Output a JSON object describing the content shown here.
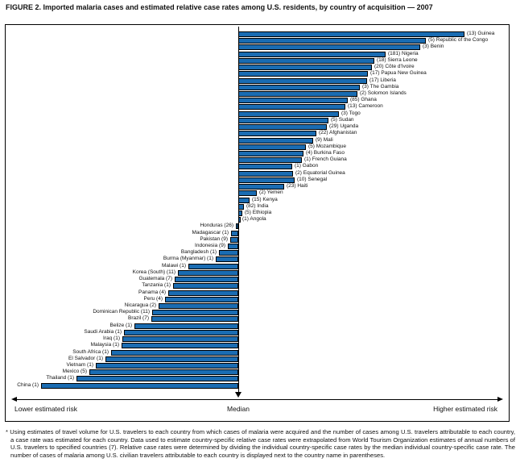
{
  "title": "FIGURE 2.  Imported malaria cases and estimated relative case rates among U.S. residents, by country of acquisition — 2007",
  "footnote": "* Using estimates of travel volume for U.S. travelers to each country from which cases of malaria were acquired and the number of cases among U.S. travelers attributable to each country, a case rate was estimated for each country.  Data used to estimate country-specific relative case rates were extrapolated from World Tourism Organization estimates of annual numbers of U.S. travelers to specified countries (7). Relative case rates were determined by dividing the individual country-specific case rates by the median individual country-specific case rate. The number of cases of malaria among U.S. civilian travelers attributable to each country is displayed next to the country name in parentheses.",
  "colors": {
    "bar_fill": "#1a6cb2",
    "bar_border": "#000000",
    "text": "#111111"
  },
  "chart_data": {
    "type": "bar",
    "orientation": "horizontal-diverging",
    "title": "Imported malaria cases and estimated relative case rates among U.S. residents, by country of acquisition — 2007",
    "value_note": "len = estimated relative case rate as pixel distance from the median line (no numeric axis shown in figure); side = higher/lower estimated risk vs median",
    "axis": {
      "left": "Lower estimated risk",
      "center": "Median",
      "right": "Higher estimated risk"
    },
    "rows": [
      {
        "country": "Guinea",
        "cases": 13,
        "label": "(13) Guinea",
        "side": "higher",
        "len": 281
      },
      {
        "country": "Republic of the Congo",
        "cases": 5,
        "label": "(5) Republic of the Congo",
        "side": "higher",
        "len": 233
      },
      {
        "country": "Benin",
        "cases": 3,
        "label": "(3) Benin",
        "side": "higher",
        "len": 226
      },
      {
        "country": "Nigeria",
        "cases": 181,
        "label": "(181) Nigeria",
        "side": "higher",
        "len": 183
      },
      {
        "country": "Sierra Leone",
        "cases": 18,
        "label": "(18) Sierra Leone",
        "side": "higher",
        "len": 169
      },
      {
        "country": "Côte d'Ivoire",
        "cases": 20,
        "label": "(20) Côte d'Ivoire",
        "side": "higher",
        "len": 166
      },
      {
        "country": "Papua New Guinea",
        "cases": 17,
        "label": "(17) Papua New Guinea",
        "side": "higher",
        "len": 161
      },
      {
        "country": "Liberia",
        "cases": 17,
        "label": "(17) Liberia",
        "side": "higher",
        "len": 160
      },
      {
        "country": "The Gambia",
        "cases": 3,
        "label": "(3) The Gambia",
        "side": "higher",
        "len": 151
      },
      {
        "country": "Solomon Islands",
        "cases": 2,
        "label": "(2) Solomon Islands",
        "side": "higher",
        "len": 148
      },
      {
        "country": "Ghana",
        "cases": 85,
        "label": "(85) Ghana",
        "side": "higher",
        "len": 136
      },
      {
        "country": "Cameroon",
        "cases": 13,
        "label": "(13) Cameroon",
        "side": "higher",
        "len": 133
      },
      {
        "country": "Togo",
        "cases": 3,
        "label": "(3) Togo",
        "side": "higher",
        "len": 125
      },
      {
        "country": "Sudan",
        "cases": 5,
        "label": "(5) Sudan",
        "side": "higher",
        "len": 112
      },
      {
        "country": "Uganda",
        "cases": 29,
        "label": "(29) Uganda",
        "side": "higher",
        "len": 110
      },
      {
        "country": "Afghanistan",
        "cases": 22,
        "label": "(22) Afghanistan",
        "side": "higher",
        "len": 97
      },
      {
        "country": "Mali",
        "cases": 9,
        "label": "(9) Mali",
        "side": "higher",
        "len": 93
      },
      {
        "country": "Mozambique",
        "cases": 5,
        "label": "(5) Mozambique",
        "side": "higher",
        "len": 84
      },
      {
        "country": "Burkina Faso",
        "cases": 4,
        "label": "(4) Burkina Faso",
        "side": "higher",
        "len": 81
      },
      {
        "country": "French Guiana",
        "cases": 1,
        "label": "(1) French Guiana",
        "side": "higher",
        "len": 79
      },
      {
        "country": "Gabon",
        "cases": 1,
        "label": "(1) Gabon",
        "side": "higher",
        "len": 67
      },
      {
        "country": "Equatorial Guinea",
        "cases": 2,
        "label": "(2) Equatorial Guinea",
        "side": "higher",
        "len": 68
      },
      {
        "country": "Senegal",
        "cases": 10,
        "label": "(10) Senegal",
        "side": "higher",
        "len": 70
      },
      {
        "country": "Haiti",
        "cases": 23,
        "label": "(23) Haiti",
        "side": "higher",
        "len": 57
      },
      {
        "country": "Yemen",
        "cases": 2,
        "label": "(2) Yemen",
        "side": "higher",
        "len": 23
      },
      {
        "country": "Kenya",
        "cases": 15,
        "label": "(15) Kenya",
        "side": "higher",
        "len": 14
      },
      {
        "country": "India",
        "cases": 82,
        "label": "(82) India",
        "side": "higher",
        "len": 7
      },
      {
        "country": "Ethiopia",
        "cases": 5,
        "label": "(5) Ethiopia",
        "side": "higher",
        "len": 5
      },
      {
        "country": "Angola",
        "cases": 1,
        "label": "(1) Angola",
        "side": "higher",
        "len": 2
      },
      {
        "country": "Honduras",
        "cases": 26,
        "label": "Honduras (26)",
        "side": "lower",
        "len": 3
      },
      {
        "country": "Madagascar",
        "cases": 1,
        "label": "Madagascar (1)",
        "side": "lower",
        "len": 9
      },
      {
        "country": "Pakistan",
        "cases": 9,
        "label": "Pakistan (9)",
        "side": "lower",
        "len": 10
      },
      {
        "country": "Indonesia",
        "cases": 9,
        "label": "Indonesia (9)",
        "side": "lower",
        "len": 13
      },
      {
        "country": "Bangladesh",
        "cases": 1,
        "label": "Bangladesh (1)",
        "side": "lower",
        "len": 24
      },
      {
        "country": "Burma (Myanmar)",
        "cases": 1,
        "label": "Burma (Myanmar) (1)",
        "side": "lower",
        "len": 28
      },
      {
        "country": "Malawi",
        "cases": 1,
        "label": "Malawi (1)",
        "side": "lower",
        "len": 62
      },
      {
        "country": "Korea (South)",
        "cases": 11,
        "label": "Korea (South) (11)",
        "side": "lower",
        "len": 75
      },
      {
        "country": "Guatemala",
        "cases": 7,
        "label": "Guatemala (7)",
        "side": "lower",
        "len": 79
      },
      {
        "country": "Tanzania",
        "cases": 1,
        "label": "Tanzania (1)",
        "side": "lower",
        "len": 81
      },
      {
        "country": "Panama",
        "cases": 4,
        "label": "Panama (4)",
        "side": "lower",
        "len": 87
      },
      {
        "country": "Peru",
        "cases": 4,
        "label": "Peru (4)",
        "side": "lower",
        "len": 91
      },
      {
        "country": "Nicaragua",
        "cases": 2,
        "label": "Nicaragua (2)",
        "side": "lower",
        "len": 99
      },
      {
        "country": "Dominican Republic",
        "cases": 11,
        "label": "Dominican Republic (11)",
        "side": "lower",
        "len": 107
      },
      {
        "country": "Brazil",
        "cases": 7,
        "label": "Brazil (7)",
        "side": "lower",
        "len": 108
      },
      {
        "country": "Belize",
        "cases": 1,
        "label": "Belize (1)",
        "side": "lower",
        "len": 129
      },
      {
        "country": "Saudi Arabia",
        "cases": 1,
        "label": "Saudi Arabia (1)",
        "side": "lower",
        "len": 142
      },
      {
        "country": "Iraq",
        "cases": 1,
        "label": "Iraq (1)",
        "side": "lower",
        "len": 144
      },
      {
        "country": "Malaysia",
        "cases": 1,
        "label": "Malaysia (1)",
        "side": "lower",
        "len": 145
      },
      {
        "country": "South Africa",
        "cases": 1,
        "label": "South Africa (1)",
        "side": "lower",
        "len": 158
      },
      {
        "country": "El Salvador",
        "cases": 1,
        "label": "El Salvador (1)",
        "side": "lower",
        "len": 165
      },
      {
        "country": "Vietnam",
        "cases": 1,
        "label": "Vietnam (1)",
        "side": "lower",
        "len": 177
      },
      {
        "country": "Mexico",
        "cases": 5,
        "label": "Mexico (5)",
        "side": "lower",
        "len": 185
      },
      {
        "country": "Thailand",
        "cases": 1,
        "label": "Thailand (1)",
        "side": "lower",
        "len": 201
      },
      {
        "country": "China",
        "cases": 1,
        "label": "China (1)",
        "side": "lower",
        "len": 245
      }
    ]
  }
}
